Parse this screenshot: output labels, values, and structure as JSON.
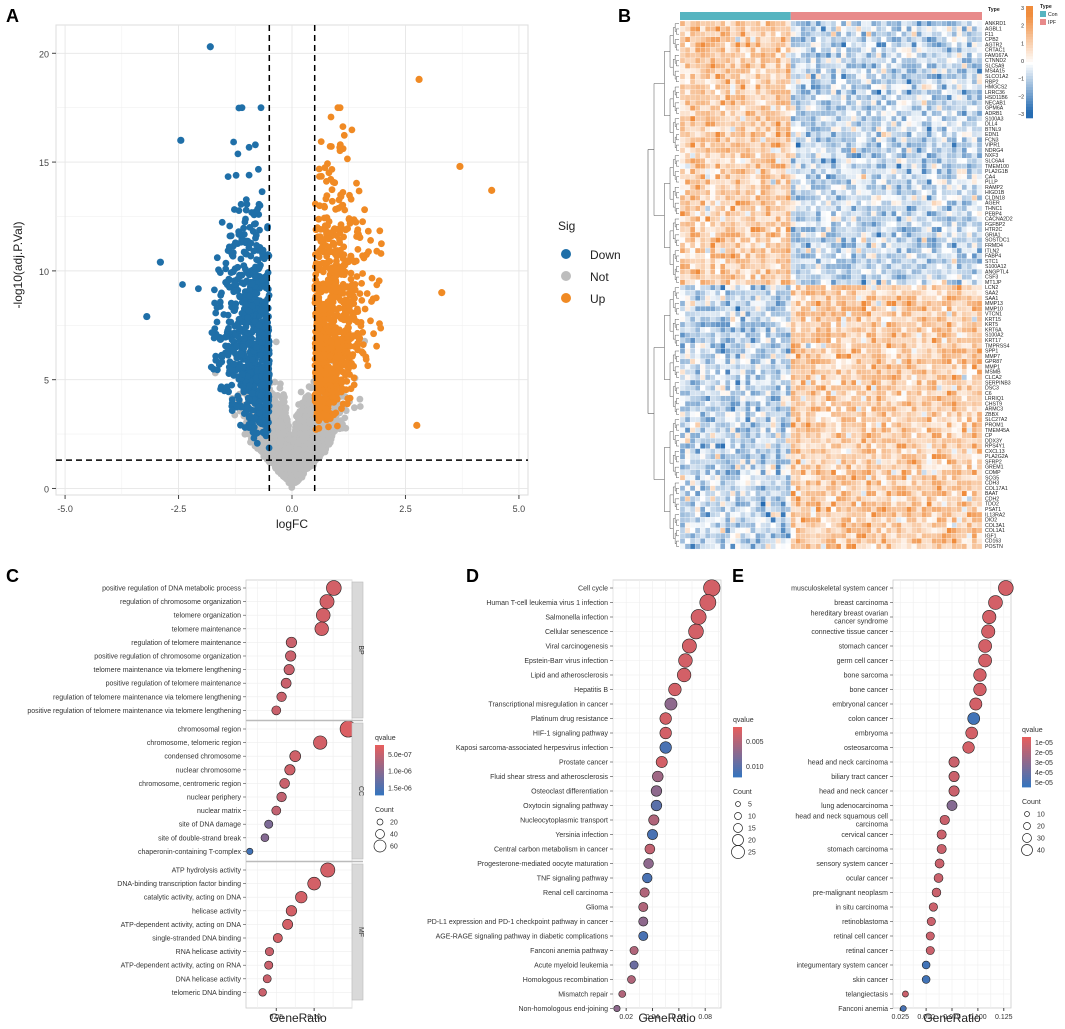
{
  "panels": {
    "A": {
      "letter": "A",
      "type": "scatter",
      "xlabel": "logFC",
      "ylabel": "-log10(adj.P.Val)",
      "xlim": [
        -5.2,
        5.2
      ],
      "ylim": [
        -0.3,
        21.3
      ],
      "xticks": [
        -5.0,
        -2.5,
        0.0,
        2.5,
        5.0
      ],
      "xtick_labels": [
        "-5.0",
        "-2.5",
        "0.0",
        "2.5",
        "5.0"
      ],
      "yticks": [
        0,
        5,
        10,
        15,
        20
      ],
      "ytick_labels": [
        "0",
        "5",
        "10",
        "15",
        "20"
      ],
      "thresholds": {
        "logFC": [
          -0.5,
          0.5
        ],
        "y": 1.3
      },
      "legend_title": "Sig",
      "legend": [
        {
          "label": "Down",
          "color": "#1f6fa8"
        },
        {
          "label": "Not",
          "color": "#bdbdbd"
        },
        {
          "label": "Up",
          "color": "#f08a24"
        }
      ],
      "highlight_points": [
        {
          "x": -1.8,
          "y": 20.3,
          "sig": "Down"
        },
        {
          "x": -2.45,
          "y": 16.0,
          "sig": "Down"
        },
        {
          "x": -3.2,
          "y": 7.9,
          "sig": "Down"
        },
        {
          "x": -2.9,
          "y": 10.4,
          "sig": "Down"
        },
        {
          "x": 3.7,
          "y": 14.8,
          "sig": "Up"
        },
        {
          "x": 4.4,
          "y": 13.7,
          "sig": "Up"
        },
        {
          "x": 2.8,
          "y": 18.8,
          "sig": "Up"
        },
        {
          "x": 3.3,
          "y": 9.0,
          "sig": "Up"
        },
        {
          "x": 2.75,
          "y": 2.9,
          "sig": "Up"
        }
      ]
    },
    "B": {
      "letter": "B",
      "type": "heatmap",
      "annotation_title": "Type",
      "groups": [
        {
          "label": "Con",
          "color": "#56b4c0",
          "n": 22
        },
        {
          "label": "IPF",
          "color": "#e88a8a",
          "n": 38
        }
      ],
      "colorbar_ticks": [
        "3",
        "2",
        "1",
        "0",
        "−1",
        "−2",
        "−3"
      ],
      "up_in_con_genes": [
        "ANKRD1",
        "AGBL1",
        "F11",
        "CPB2",
        "AGTR2",
        "CRTAC1",
        "FAM167A",
        "CTNND2",
        "SLC5A9",
        "MS4A15",
        "SLCO1A2",
        "RBP2",
        "HMGCS2",
        "LRRC36",
        "HSD11B6",
        "NECAB1",
        "GPM6A",
        "ADRB1",
        "S100A3",
        "DLL4",
        "BTNL9",
        "EDN1",
        "FCN3",
        "VIPR1",
        "NDRG4",
        "NXF3",
        "SLC6A4",
        "TMEM100",
        "PLA2G1B",
        "CA4",
        "PLLP",
        "RAMP2",
        "HIGD1B",
        "CLDN18",
        "AGER",
        "THNC1",
        "PEBP4",
        "CACNA2D2",
        "FGFBP2",
        "HTR2C",
        "GRIA1",
        "SOSTDC1",
        "FRMD4",
        "ITLN2",
        "FABP4",
        "STC1",
        "S100A12",
        "ANGPTL4",
        "CSF3",
        "MT1JP"
      ],
      "up_in_ipf_genes": [
        "LCN2",
        "SAA2",
        "SAA1",
        "MMP13",
        "MMP10",
        "VTCN1",
        "KRT15",
        "KRT5",
        "KRT6A",
        "S100A2",
        "KRT17",
        "TMPRSS4",
        "SPP1",
        "MMP7",
        "GPR87",
        "MMP1",
        "MSMB",
        "CLCA2",
        "SERPINB3",
        "DSC3",
        "C6",
        "LRRIQ1",
        "CHST9",
        "ARMC3",
        "ZBBX",
        "SLC27A2",
        "PROM1",
        "TMEM45A",
        "CP",
        "DDX3Y",
        "RPS4Y1",
        "CXCL13",
        "PLA2G2A",
        "SFRP2",
        "GREM1",
        "COMP",
        "SCG5",
        "CDH3",
        "COL17A1",
        "BAAT",
        "CDH2",
        "TDO2",
        "PSAT1",
        "IL13RA2",
        "DIO2",
        "COL3A1",
        "COL1A1",
        "IGF1",
        "CD163",
        "POSTN"
      ]
    },
    "C": {
      "letter": "C",
      "type": "scatter",
      "xlabel": "GeneRatio",
      "xlim": [
        0.01,
        0.15
      ],
      "xticks": [
        0.05,
        0.1
      ],
      "xtick_labels": [
        "0.05",
        "0.10"
      ],
      "legend_color_title": "qvalue",
      "legend_color_ticks": [
        "5.0e-07",
        "1.0e-06",
        "1.5e-06"
      ],
      "legend_size_title": "Count",
      "legend_size_values": [
        "20",
        "40",
        "60"
      ],
      "facets": [
        {
          "label": "BP",
          "terms": [
            {
              "term": "positive regulation of DNA metabolic process",
              "ratio": 0.126,
              "q": 0.1
            },
            {
              "term": "regulation of chromosome organization",
              "ratio": 0.117,
              "q": 0.1
            },
            {
              "term": "telomere organization",
              "ratio": 0.112,
              "q": 0.1
            },
            {
              "term": "telomere maintenance",
              "ratio": 0.11,
              "q": 0.1
            },
            {
              "term": "regulation of telomere maintenance",
              "ratio": 0.07,
              "q": 0.15
            },
            {
              "term": "positive regulation of chromosome organization",
              "ratio": 0.069,
              "q": 0.15
            },
            {
              "term": "telomere maintenance via telomere lengthening",
              "ratio": 0.067,
              "q": 0.15
            },
            {
              "term": "positive regulation of telomere maintenance",
              "ratio": 0.063,
              "q": 0.15
            },
            {
              "term": "regulation of telomere maintenance via telomere lengthening",
              "ratio": 0.057,
              "q": 0.15
            },
            {
              "term": "positive regulation of telomere maintenance via telomere lengthening",
              "ratio": 0.05,
              "q": 0.15
            }
          ]
        },
        {
          "label": "CC",
          "terms": [
            {
              "term": "chromosomal region",
              "ratio": 0.145,
              "q": 0.05
            },
            {
              "term": "chromosome, telomeric region",
              "ratio": 0.108,
              "q": 0.1
            },
            {
              "term": "condensed chromosome",
              "ratio": 0.075,
              "q": 0.12
            },
            {
              "term": "nuclear chromosome",
              "ratio": 0.068,
              "q": 0.12
            },
            {
              "term": "chromosome, centromeric region",
              "ratio": 0.061,
              "q": 0.15
            },
            {
              "term": "nuclear periphery",
              "ratio": 0.057,
              "q": 0.2
            },
            {
              "term": "nuclear matrix",
              "ratio": 0.05,
              "q": 0.2
            },
            {
              "term": "site of DNA damage",
              "ratio": 0.04,
              "q": 0.6
            },
            {
              "term": "site of double-strand break",
              "ratio": 0.035,
              "q": 0.55
            },
            {
              "term": "chaperonin-containing T-complex",
              "ratio": 0.015,
              "q": 0.95
            }
          ]
        },
        {
          "label": "MF",
          "terms": [
            {
              "term": "ATP hydrolysis activity",
              "ratio": 0.118,
              "q": 0.1
            },
            {
              "term": "DNA-binding transcription factor binding",
              "ratio": 0.1,
              "q": 0.1
            },
            {
              "term": "catalytic activity, acting on DNA",
              "ratio": 0.083,
              "q": 0.1
            },
            {
              "term": "helicase activity",
              "ratio": 0.07,
              "q": 0.1
            },
            {
              "term": "ATP-dependent activity, acting on DNA",
              "ratio": 0.065,
              "q": 0.1
            },
            {
              "term": "single-stranded DNA binding",
              "ratio": 0.052,
              "q": 0.1
            },
            {
              "term": "RNA helicase activity",
              "ratio": 0.041,
              "q": 0.15
            },
            {
              "term": "ATP-dependent activity, acting on RNA",
              "ratio": 0.04,
              "q": 0.15
            },
            {
              "term": "DNA helicase activity",
              "ratio": 0.038,
              "q": 0.15
            },
            {
              "term": "telomeric DNA binding",
              "ratio": 0.032,
              "q": 0.15
            }
          ]
        }
      ]
    },
    "D": {
      "letter": "D",
      "type": "scatter",
      "xlabel": "GeneRatio",
      "xlim": [
        0.01,
        0.092
      ],
      "xticks": [
        0.02,
        0.04,
        0.06,
        0.08
      ],
      "xtick_labels": [
        "0.02",
        "0.04",
        "0.06",
        "0.08"
      ],
      "legend_color_title": "qvalue",
      "legend_color_ticks": [
        "0.005",
        "0.010"
      ],
      "legend_size_title": "Count",
      "legend_size_values": [
        "5",
        "10",
        "15",
        "20",
        "25"
      ],
      "terms": [
        {
          "term": "Cell cycle",
          "ratio": 0.085,
          "q": 0.1
        },
        {
          "term": "Human T-cell leukemia virus 1 infection",
          "ratio": 0.082,
          "q": 0.1
        },
        {
          "term": "Salmonella infection",
          "ratio": 0.075,
          "q": 0.1
        },
        {
          "term": "Cellular senescence",
          "ratio": 0.073,
          "q": 0.1
        },
        {
          "term": "Viral carcinogenesis",
          "ratio": 0.068,
          "q": 0.1
        },
        {
          "term": "Epstein-Barr virus infection",
          "ratio": 0.065,
          "q": 0.1
        },
        {
          "term": "Lipid and atherosclerosis",
          "ratio": 0.064,
          "q": 0.1
        },
        {
          "term": "Hepatitis B",
          "ratio": 0.057,
          "q": 0.1
        },
        {
          "term": "Transcriptional misregulation in cancer",
          "ratio": 0.054,
          "q": 0.5
        },
        {
          "term": "Platinum drug resistance",
          "ratio": 0.05,
          "q": 0.1
        },
        {
          "term": "HIF-1 signaling pathway",
          "ratio": 0.05,
          "q": 0.1
        },
        {
          "term": "Kaposi sarcoma-associated herpesvirus infection",
          "ratio": 0.05,
          "q": 0.9
        },
        {
          "term": "Prostate cancer",
          "ratio": 0.047,
          "q": 0.1
        },
        {
          "term": "Fluid shear stress and atherosclerosis",
          "ratio": 0.044,
          "q": 0.4
        },
        {
          "term": "Osteoclast differentiation",
          "ratio": 0.043,
          "q": 0.5
        },
        {
          "term": "Oxytocin signaling pathway",
          "ratio": 0.043,
          "q": 0.8
        },
        {
          "term": "Nucleocytoplasmic transport",
          "ratio": 0.041,
          "q": 0.3
        },
        {
          "term": "Yersinia infection",
          "ratio": 0.04,
          "q": 0.9
        },
        {
          "term": "Central carbon metabolism in cancer",
          "ratio": 0.038,
          "q": 0.2
        },
        {
          "term": "Progesterone-mediated oocyte maturation",
          "ratio": 0.037,
          "q": 0.5
        },
        {
          "term": "TNF signaling pathway",
          "ratio": 0.036,
          "q": 0.9
        },
        {
          "term": "Renal cell carcinoma",
          "ratio": 0.034,
          "q": 0.3
        },
        {
          "term": "Glioma",
          "ratio": 0.033,
          "q": 0.3
        },
        {
          "term": "PD-L1 expression and PD-1 checkpoint pathway in cancer",
          "ratio": 0.033,
          "q": 0.5
        },
        {
          "term": "AGE-RAGE signaling pathway in diabetic complications",
          "ratio": 0.033,
          "q": 0.9
        },
        {
          "term": "Fanconi anemia pathway",
          "ratio": 0.026,
          "q": 0.3
        },
        {
          "term": "Acute myeloid leukemia",
          "ratio": 0.026,
          "q": 0.7
        },
        {
          "term": "Homologous recombination",
          "ratio": 0.024,
          "q": 0.3
        },
        {
          "term": "Mismatch repair",
          "ratio": 0.017,
          "q": 0.3
        },
        {
          "term": "Non-homologous end-joining",
          "ratio": 0.013,
          "q": 0.5
        }
      ]
    },
    "E": {
      "letter": "E",
      "type": "scatter",
      "xlabel": "GeneRatio",
      "xlim": [
        0.018,
        0.132
      ],
      "xticks": [
        0.025,
        0.05,
        0.075,
        0.1,
        0.125
      ],
      "xtick_labels": [
        "0.025",
        "0.050",
        "0.075",
        "0.100",
        "0.125"
      ],
      "legend_color_title": "qvalue",
      "legend_color_ticks": [
        "1e-05",
        "2e-05",
        "3e-05",
        "4e-05",
        "5e-05"
      ],
      "legend_size_title": "Count",
      "legend_size_values": [
        "10",
        "20",
        "30",
        "40"
      ],
      "terms": [
        {
          "term": "musculoskeletal system cancer",
          "ratio": 0.127,
          "q": 0.1
        },
        {
          "term": "breast carcinoma",
          "ratio": 0.117,
          "q": 0.1
        },
        {
          "term": "hereditary breast ovarian cancer syndrome",
          "ratio": 0.111,
          "q": 0.1
        },
        {
          "term": "connective tissue cancer",
          "ratio": 0.11,
          "q": 0.1
        },
        {
          "term": "stomach cancer",
          "ratio": 0.107,
          "q": 0.1
        },
        {
          "term": "germ cell cancer",
          "ratio": 0.107,
          "q": 0.1
        },
        {
          "term": "bone sarcoma",
          "ratio": 0.102,
          "q": 0.1
        },
        {
          "term": "bone cancer",
          "ratio": 0.102,
          "q": 0.1
        },
        {
          "term": "embryonal cancer",
          "ratio": 0.098,
          "q": 0.1
        },
        {
          "term": "colon cancer",
          "ratio": 0.096,
          "q": 0.95
        },
        {
          "term": "embryoma",
          "ratio": 0.094,
          "q": 0.1
        },
        {
          "term": "osteosarcoma",
          "ratio": 0.091,
          "q": 0.1
        },
        {
          "term": "head and neck carcinoma",
          "ratio": 0.077,
          "q": 0.15
        },
        {
          "term": "biliary tract cancer",
          "ratio": 0.077,
          "q": 0.15
        },
        {
          "term": "head and neck cancer",
          "ratio": 0.077,
          "q": 0.15
        },
        {
          "term": "lung adenocarcinoma",
          "ratio": 0.075,
          "q": 0.55
        },
        {
          "term": "head and neck squamous cell carcinoma",
          "ratio": 0.068,
          "q": 0.15
        },
        {
          "term": "cervical cancer",
          "ratio": 0.065,
          "q": 0.15
        },
        {
          "term": "stomach carcinoma",
          "ratio": 0.065,
          "q": 0.15
        },
        {
          "term": "sensory system cancer",
          "ratio": 0.063,
          "q": 0.15
        },
        {
          "term": "ocular cancer",
          "ratio": 0.062,
          "q": 0.15
        },
        {
          "term": "pre-malignant neoplasm",
          "ratio": 0.06,
          "q": 0.15
        },
        {
          "term": "in situ carcinoma",
          "ratio": 0.057,
          "q": 0.15
        },
        {
          "term": "retinoblastoma",
          "ratio": 0.055,
          "q": 0.15
        },
        {
          "term": "retinal cell cancer",
          "ratio": 0.054,
          "q": 0.15
        },
        {
          "term": "retinal cancer",
          "ratio": 0.054,
          "q": 0.15
        },
        {
          "term": "integumentary system cancer",
          "ratio": 0.05,
          "q": 0.95
        },
        {
          "term": "skin cancer",
          "ratio": 0.05,
          "q": 0.95
        },
        {
          "term": "telangiectasis",
          "ratio": 0.03,
          "q": 0.15
        },
        {
          "term": "Fanconi anemia",
          "ratio": 0.028,
          "q": 0.9
        }
      ]
    }
  }
}
